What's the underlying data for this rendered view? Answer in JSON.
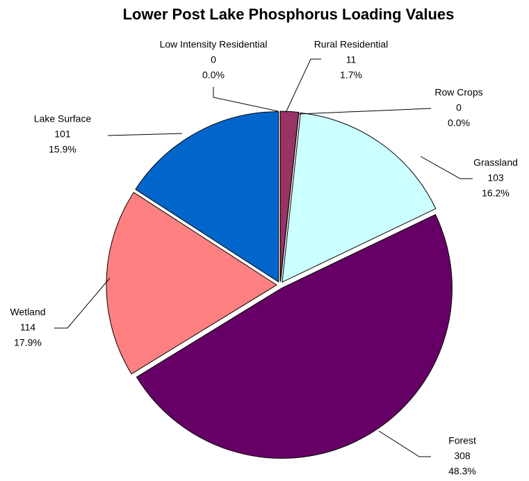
{
  "chart_data": {
    "type": "pie",
    "title": "Lower Post Lake Phosphorus Loading Values",
    "categories": [
      "Rural Residential",
      "Row Crops",
      "Grassland",
      "Forest",
      "Wetland",
      "Lake Surface",
      "Low Intensity Residential"
    ],
    "values": [
      11,
      0,
      103,
      308,
      114,
      101,
      0
    ],
    "value_labels": [
      "1.7%",
      "0.0%",
      "16.2%",
      "48.3%",
      "17.9%",
      "15.9%",
      "0.0%"
    ],
    "colors": [
      "#993366",
      "#ffffcc",
      "#ccffff",
      "#660066",
      "#ff8080",
      "#0066cc",
      "#9999ff"
    ]
  }
}
